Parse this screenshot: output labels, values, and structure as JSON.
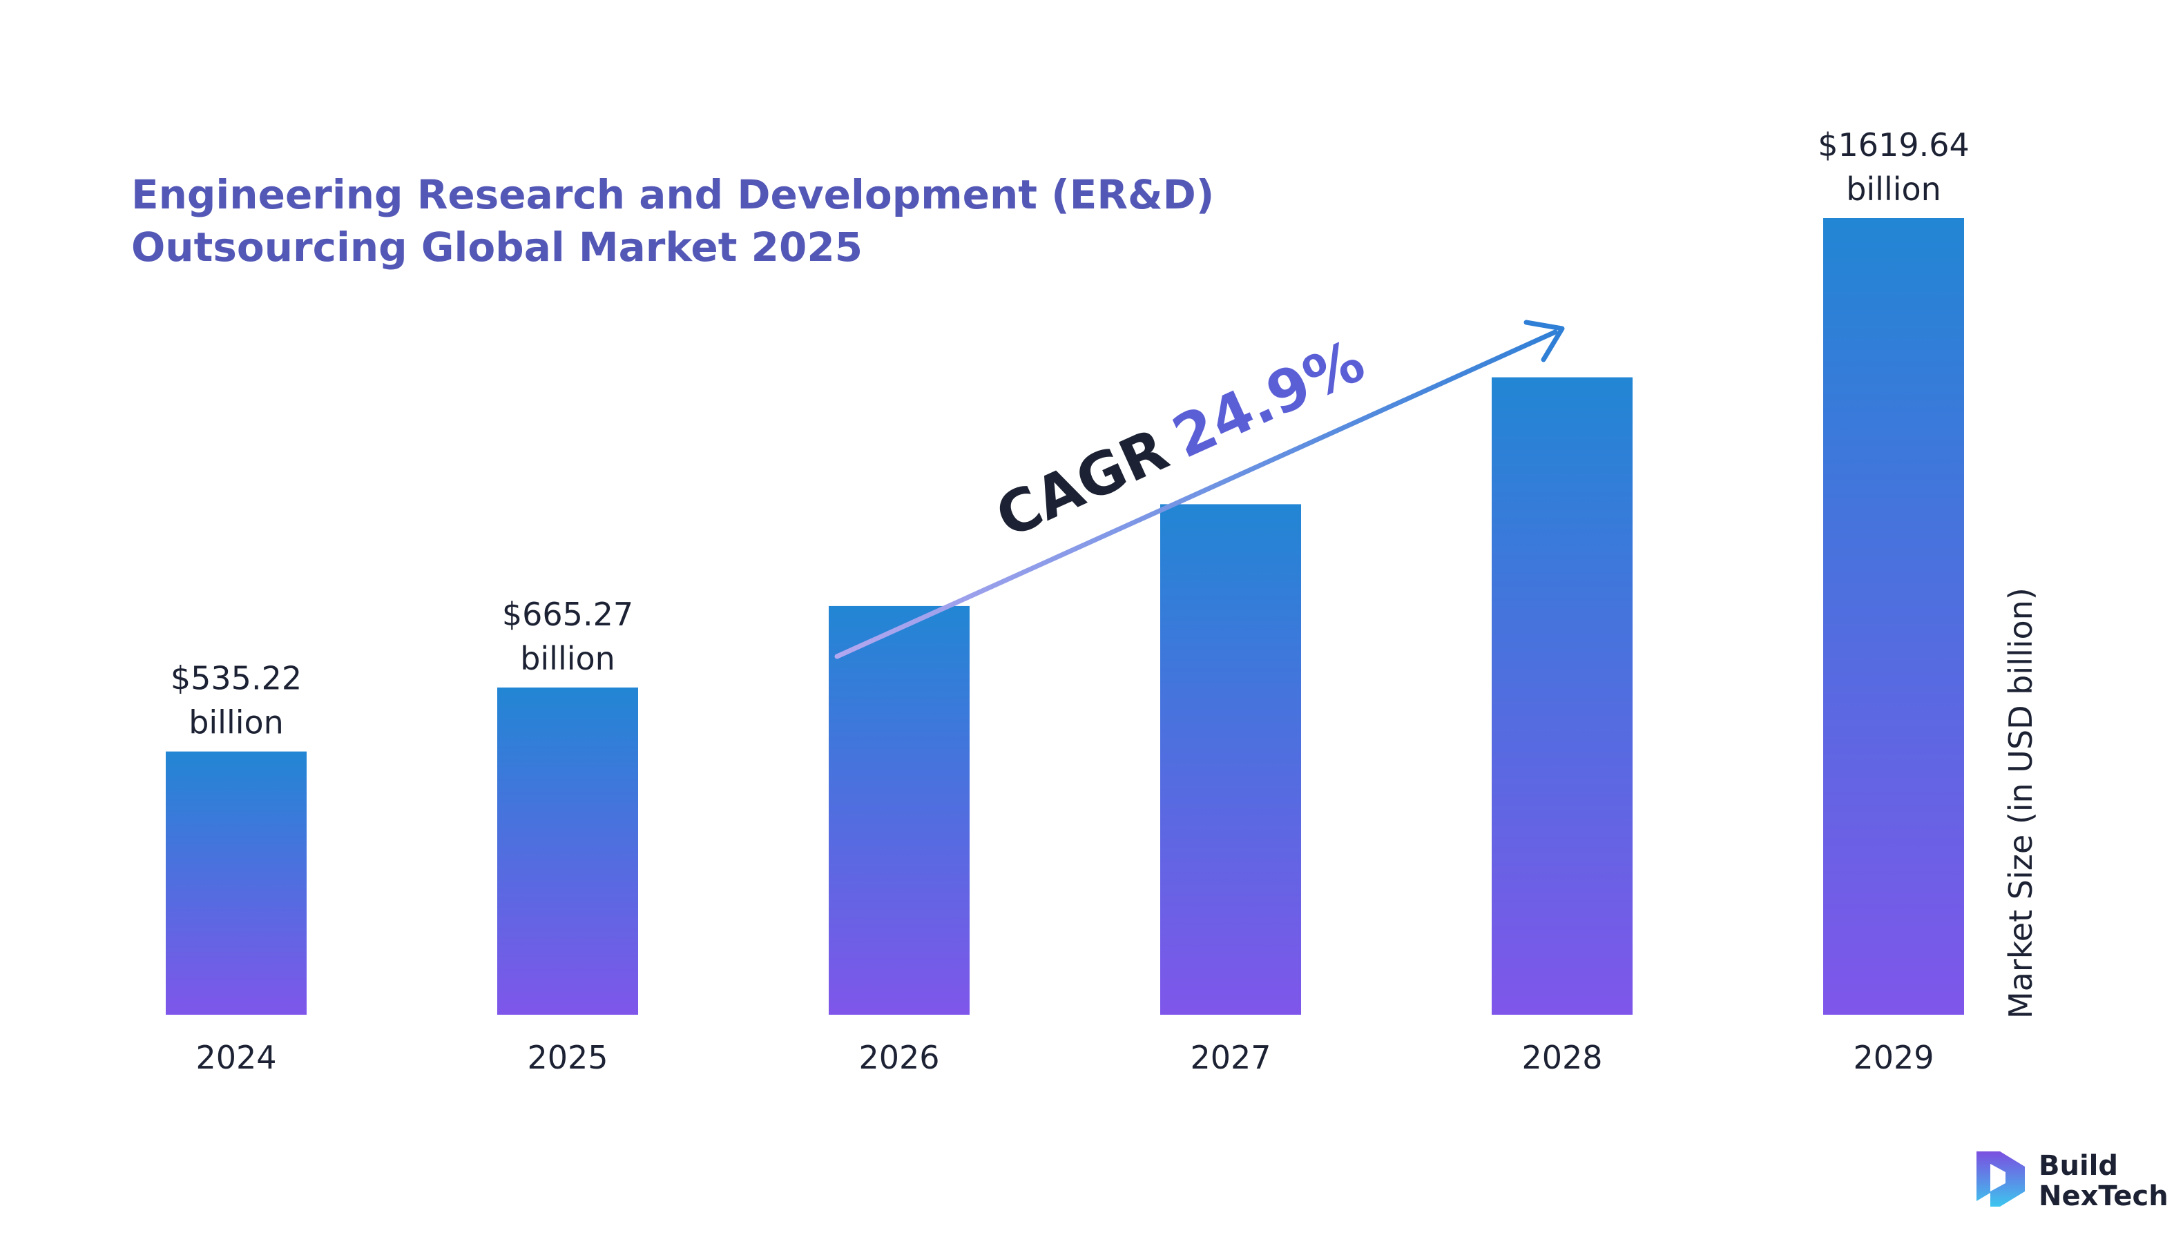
{
  "chart_data": {
    "type": "bar",
    "title_lines": [
      "Engineering Research and Development (ER&D)",
      "Outsourcing Global Market 2025"
    ],
    "categories": [
      "2024",
      "2025",
      "2026",
      "2027",
      "2028",
      "2029"
    ],
    "values": [
      535.22,
      665.27,
      831,
      1038,
      1296,
      1619.64
    ],
    "labels": [
      [
        "$535.22",
        "billion"
      ],
      [
        "$665.27",
        "billion"
      ],
      null,
      null,
      null,
      [
        "$1619.64",
        "billion"
      ]
    ],
    "ylabel": "Market Size (in USD billion)",
    "xlabel": "",
    "ylim": [
      0,
      1619.64
    ],
    "grid": false,
    "annotation": {
      "label": "CAGR",
      "value": "24.9%"
    },
    "colors": {
      "bar_top": "#2286d4",
      "bar_bottom": "#7f56ea",
      "title": "#5357b6",
      "cagr_value": "#5b5fd6",
      "arrow_start": "#b3a7f0",
      "arrow_end": "#2f7fd6"
    }
  },
  "brand": {
    "line1": "Build",
    "line2": "NexTech"
  }
}
